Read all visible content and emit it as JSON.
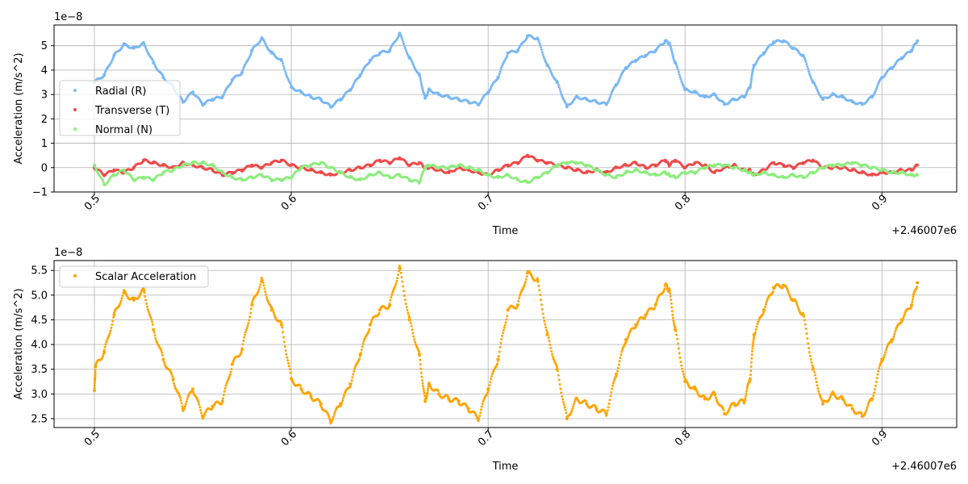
{
  "figure": {
    "background": "#ffffff"
  },
  "chart_data": [
    {
      "type": "scatter",
      "xlabel": "Time",
      "ylabel": "Acceleration (m/s^2)",
      "x_offset_label": "+2.46007e6",
      "y_scale_label": "1e−8",
      "xlim": [
        0.4795,
        0.938
      ],
      "ylim": [
        -1.0,
        5.85
      ],
      "xticks": [
        0.5,
        0.6,
        0.7,
        0.8,
        0.9
      ],
      "xtick_labels": [
        "0.5",
        "0.6",
        "0.7",
        "0.8",
        "0.9"
      ],
      "yticks": [
        -1,
        0,
        1,
        2,
        3,
        4,
        5
      ],
      "ytick_labels": [
        "−1",
        "0",
        "1",
        "2",
        "3",
        "4",
        "5"
      ],
      "grid": true,
      "legend_position": "center-left",
      "series": [
        {
          "name": "Radial (R)",
          "color": "#7ab8f5",
          "x": [
            0.5,
            0.505,
            0.51,
            0.515,
            0.52,
            0.525,
            0.53,
            0.535,
            0.54,
            0.545,
            0.55,
            0.555,
            0.56,
            0.565,
            0.57,
            0.575,
            0.58,
            0.585,
            0.59,
            0.595,
            0.6,
            0.605,
            0.61,
            0.615,
            0.62,
            0.625,
            0.63,
            0.635,
            0.64,
            0.645,
            0.65,
            0.655,
            0.66,
            0.665,
            0.668,
            0.67,
            0.675,
            0.68,
            0.685,
            0.69,
            0.695,
            0.7,
            0.705,
            0.71,
            0.715,
            0.72,
            0.725,
            0.73,
            0.735,
            0.74,
            0.745,
            0.75,
            0.755,
            0.76,
            0.765,
            0.77,
            0.775,
            0.78,
            0.785,
            0.79,
            0.792,
            0.795,
            0.8,
            0.805,
            0.81,
            0.815,
            0.82,
            0.825,
            0.83,
            0.833,
            0.835,
            0.84,
            0.845,
            0.85,
            0.855,
            0.86,
            0.865,
            0.87,
            0.875,
            0.88,
            0.885,
            0.89,
            0.895,
            0.9,
            0.905,
            0.91,
            0.915,
            0.918
          ],
          "values": [
            3.5,
            3.8,
            4.6,
            5.05,
            4.9,
            5.1,
            4.3,
            3.7,
            3.3,
            2.7,
            3.1,
            2.6,
            2.8,
            2.9,
            3.6,
            3.9,
            4.8,
            5.3,
            4.7,
            4.4,
            3.3,
            3.1,
            2.9,
            2.8,
            2.5,
            2.8,
            3.2,
            3.8,
            4.4,
            4.7,
            4.8,
            5.5,
            4.5,
            3.8,
            2.85,
            3.2,
            3.0,
            2.9,
            2.8,
            2.7,
            2.6,
            3.1,
            3.7,
            4.7,
            4.8,
            5.4,
            5.3,
            4.2,
            3.5,
            2.5,
            2.9,
            2.8,
            2.7,
            2.6,
            3.4,
            4.1,
            4.4,
            4.6,
            4.8,
            5.2,
            5.1,
            4.3,
            3.2,
            3.1,
            2.9,
            3.0,
            2.6,
            2.8,
            2.9,
            3.3,
            4.2,
            4.7,
            5.15,
            5.2,
            4.9,
            4.6,
            3.5,
            2.8,
            3.0,
            2.9,
            2.7,
            2.6,
            2.9,
            3.7,
            4.1,
            4.5,
            4.8,
            5.2
          ]
        },
        {
          "name": "Transverse (T)",
          "color": "#f04a4a",
          "x": [
            0.5,
            0.505,
            0.51,
            0.515,
            0.52,
            0.525,
            0.53,
            0.535,
            0.54,
            0.545,
            0.55,
            0.555,
            0.56,
            0.565,
            0.57,
            0.575,
            0.58,
            0.585,
            0.59,
            0.595,
            0.6,
            0.605,
            0.61,
            0.615,
            0.62,
            0.625,
            0.63,
            0.635,
            0.64,
            0.645,
            0.65,
            0.655,
            0.66,
            0.665,
            0.668,
            0.67,
            0.675,
            0.68,
            0.685,
            0.69,
            0.695,
            0.7,
            0.705,
            0.71,
            0.715,
            0.72,
            0.725,
            0.73,
            0.735,
            0.74,
            0.745,
            0.75,
            0.755,
            0.76,
            0.765,
            0.77,
            0.775,
            0.78,
            0.785,
            0.79,
            0.792,
            0.795,
            0.8,
            0.805,
            0.81,
            0.815,
            0.82,
            0.825,
            0.83,
            0.833,
            0.835,
            0.84,
            0.845,
            0.85,
            0.855,
            0.86,
            0.865,
            0.87,
            0.875,
            0.88,
            0.885,
            0.89,
            0.895,
            0.9,
            0.905,
            0.91,
            0.915,
            0.918
          ],
          "values": [
            0.0,
            -0.3,
            -0.1,
            -0.2,
            0.0,
            0.3,
            0.2,
            0.1,
            0.0,
            0.2,
            0.1,
            0.0,
            -0.1,
            -0.3,
            -0.2,
            -0.1,
            0.1,
            0.0,
            0.2,
            0.3,
            0.1,
            0.0,
            -0.1,
            -0.2,
            -0.3,
            -0.2,
            -0.1,
            0.0,
            0.1,
            0.3,
            0.2,
            0.4,
            0.1,
            0.2,
            0.0,
            0.0,
            -0.1,
            -0.2,
            0.0,
            -0.1,
            -0.2,
            -0.3,
            -0.1,
            0.1,
            0.2,
            0.5,
            0.3,
            0.2,
            0.1,
            0.0,
            -0.1,
            -0.2,
            -0.1,
            -0.2,
            0.0,
            0.1,
            0.2,
            0.0,
            0.1,
            0.3,
            0.1,
            0.3,
            0.0,
            0.2,
            0.1,
            -0.2,
            0.0,
            0.1,
            -0.1,
            -0.1,
            -0.3,
            -0.1,
            0.2,
            0.1,
            0.0,
            0.2,
            0.3,
            0.0,
            0.0,
            0.0,
            -0.1,
            -0.2,
            -0.3,
            -0.2,
            -0.2,
            -0.1,
            -0.1,
            0.1
          ]
        },
        {
          "name": "Normal (N)",
          "color": "#8ced7e",
          "x": [
            0.5,
            0.505,
            0.51,
            0.515,
            0.52,
            0.525,
            0.53,
            0.535,
            0.54,
            0.545,
            0.55,
            0.555,
            0.56,
            0.565,
            0.57,
            0.575,
            0.58,
            0.585,
            0.59,
            0.595,
            0.6,
            0.605,
            0.61,
            0.615,
            0.62,
            0.625,
            0.63,
            0.635,
            0.64,
            0.645,
            0.65,
            0.655,
            0.66,
            0.665,
            0.668,
            0.67,
            0.675,
            0.68,
            0.685,
            0.69,
            0.695,
            0.7,
            0.705,
            0.71,
            0.715,
            0.72,
            0.725,
            0.73,
            0.735,
            0.74,
            0.745,
            0.75,
            0.755,
            0.76,
            0.765,
            0.77,
            0.775,
            0.78,
            0.785,
            0.79,
            0.792,
            0.795,
            0.8,
            0.805,
            0.81,
            0.815,
            0.82,
            0.825,
            0.83,
            0.833,
            0.835,
            0.84,
            0.845,
            0.85,
            0.855,
            0.86,
            0.865,
            0.87,
            0.875,
            0.88,
            0.885,
            0.89,
            0.895,
            0.9,
            0.905,
            0.91,
            0.915,
            0.918
          ],
          "values": [
            0.1,
            -0.7,
            -0.3,
            -0.1,
            -0.5,
            -0.4,
            -0.5,
            -0.2,
            -0.1,
            0.1,
            0.2,
            0.2,
            0.1,
            -0.2,
            -0.4,
            -0.5,
            -0.4,
            -0.3,
            -0.5,
            -0.5,
            -0.4,
            0.0,
            0.1,
            0.2,
            0.0,
            -0.2,
            -0.4,
            -0.5,
            -0.3,
            -0.2,
            -0.4,
            -0.3,
            -0.5,
            -0.6,
            0.0,
            0.1,
            0.0,
            0.0,
            0.1,
            0.0,
            -0.1,
            -0.3,
            -0.4,
            -0.3,
            -0.5,
            -0.6,
            -0.4,
            -0.2,
            0.1,
            0.2,
            0.2,
            0.1,
            -0.1,
            -0.3,
            -0.4,
            -0.2,
            -0.1,
            -0.2,
            -0.3,
            -0.2,
            -0.3,
            -0.4,
            -0.2,
            -0.2,
            0.0,
            0.1,
            0.1,
            0.0,
            -0.1,
            -0.2,
            -0.3,
            -0.2,
            -0.3,
            -0.4,
            -0.3,
            -0.4,
            -0.2,
            0.0,
            0.1,
            0.1,
            0.2,
            0.1,
            0.0,
            -0.1,
            -0.2,
            -0.2,
            -0.3,
            -0.3
          ]
        }
      ]
    },
    {
      "type": "scatter",
      "xlabel": "Time",
      "ylabel": "Acceleration (m/s^2)",
      "x_offset_label": "+2.46007e6",
      "y_scale_label": "1e−8",
      "xlim": [
        0.4795,
        0.938
      ],
      "ylim": [
        2.32,
        5.7
      ],
      "xticks": [
        0.5,
        0.6,
        0.7,
        0.8,
        0.9
      ],
      "xtick_labels": [
        "0.5",
        "0.6",
        "0.7",
        "0.8",
        "0.9"
      ],
      "yticks": [
        2.5,
        3.0,
        3.5,
        4.0,
        4.5,
        5.0,
        5.5
      ],
      "ytick_labels": [
        "2.5",
        "3.0",
        "3.5",
        "4.0",
        "4.5",
        "5.0",
        "5.5"
      ],
      "grid": true,
      "legend_position": "upper-left",
      "series": [
        {
          "name": "Scalar Acceleration",
          "color": "#ffa500",
          "x": [
            0.5,
            0.5005,
            0.505,
            0.51,
            0.515,
            0.52,
            0.525,
            0.53,
            0.535,
            0.54,
            0.545,
            0.55,
            0.555,
            0.56,
            0.565,
            0.57,
            0.575,
            0.58,
            0.585,
            0.59,
            0.595,
            0.6,
            0.605,
            0.61,
            0.615,
            0.62,
            0.625,
            0.63,
            0.635,
            0.64,
            0.645,
            0.65,
            0.655,
            0.66,
            0.665,
            0.668,
            0.67,
            0.675,
            0.68,
            0.685,
            0.69,
            0.695,
            0.7,
            0.705,
            0.71,
            0.715,
            0.72,
            0.725,
            0.73,
            0.735,
            0.74,
            0.745,
            0.75,
            0.755,
            0.76,
            0.765,
            0.77,
            0.775,
            0.78,
            0.785,
            0.79,
            0.792,
            0.795,
            0.8,
            0.805,
            0.81,
            0.815,
            0.82,
            0.825,
            0.83,
            0.833,
            0.835,
            0.84,
            0.845,
            0.85,
            0.855,
            0.86,
            0.865,
            0.87,
            0.875,
            0.88,
            0.885,
            0.89,
            0.895,
            0.9,
            0.905,
            0.91,
            0.915,
            0.918
          ],
          "values": [
            3.07,
            3.55,
            3.85,
            4.6,
            5.05,
            4.9,
            5.1,
            4.3,
            3.7,
            3.3,
            2.7,
            3.1,
            2.55,
            2.75,
            2.85,
            3.6,
            3.9,
            4.8,
            5.3,
            4.7,
            4.4,
            3.3,
            3.1,
            2.95,
            2.8,
            2.45,
            2.8,
            3.2,
            3.8,
            4.4,
            4.7,
            4.8,
            5.55,
            4.5,
            3.8,
            2.85,
            3.2,
            3.0,
            2.9,
            2.85,
            2.7,
            2.5,
            3.1,
            3.7,
            4.7,
            4.8,
            5.45,
            5.3,
            4.2,
            3.5,
            2.5,
            2.9,
            2.8,
            2.7,
            2.6,
            3.4,
            4.1,
            4.4,
            4.6,
            4.8,
            5.2,
            5.1,
            4.3,
            3.25,
            3.1,
            2.9,
            3.0,
            2.6,
            2.8,
            2.85,
            3.3,
            4.2,
            4.7,
            5.15,
            5.2,
            4.9,
            4.6,
            3.5,
            2.8,
            3.0,
            2.9,
            2.7,
            2.55,
            2.9,
            3.7,
            4.1,
            4.5,
            4.8,
            5.25
          ]
        }
      ]
    }
  ]
}
